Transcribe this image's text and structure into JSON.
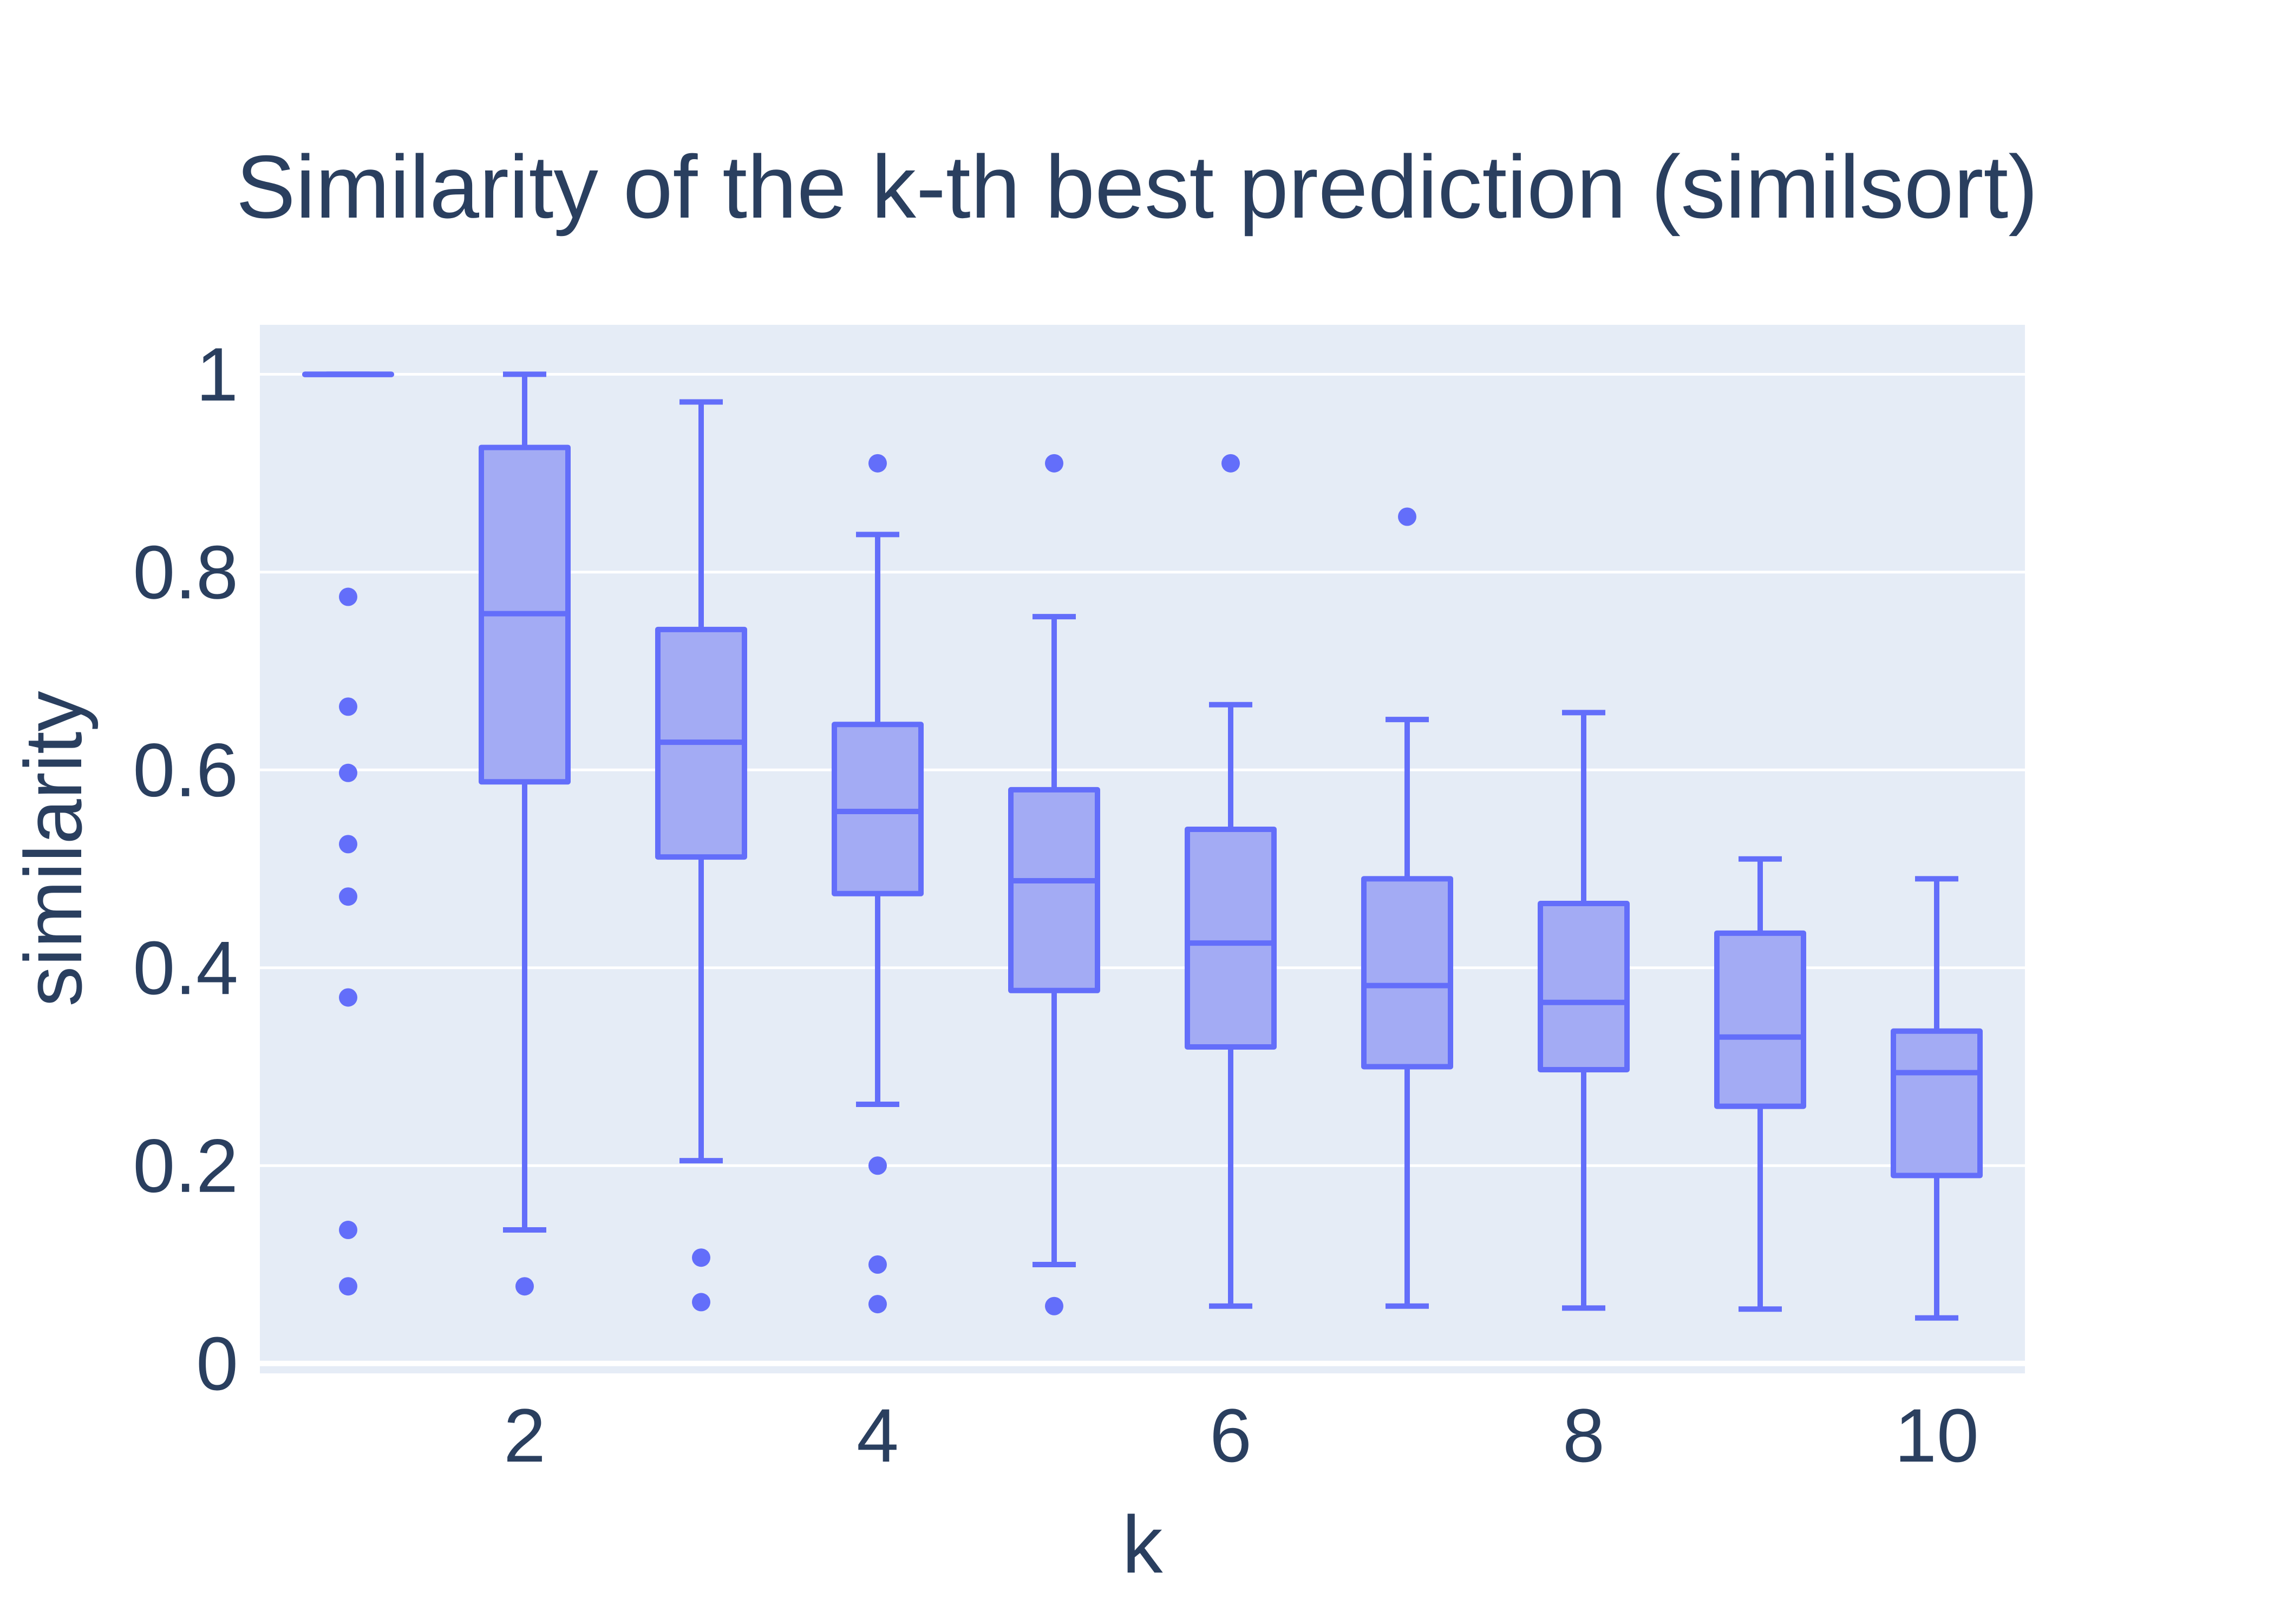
{
  "chart_data": {
    "type": "box",
    "title": "Similarity of the k-th best prediction (similsort)",
    "xlabel": "k",
    "ylabel": "similarity",
    "xlim": [
      0.5,
      10.5
    ],
    "ylim": [
      -0.01,
      1.05
    ],
    "x_ticks": [
      2,
      4,
      6,
      8,
      10
    ],
    "y_ticks": [
      0,
      0.2,
      0.4,
      0.6,
      0.8,
      1
    ],
    "y_tick_labels": [
      "0",
      "0.2",
      "0.4",
      "0.6",
      "0.8",
      "1"
    ],
    "grid": true,
    "colors": {
      "box_line": "#636efa",
      "box_fill": "#a3abf4",
      "plot_bg": "#e5ecf6",
      "grid": "#ffffff",
      "text": "#2a3f5f"
    },
    "boxes": [
      {
        "k": 1,
        "lower_whisker": 1.0,
        "q1": 1.0,
        "median": 1.0,
        "q3": 1.0,
        "upper_whisker": 1.0,
        "outliers": [
          0.775,
          0.664,
          0.597,
          0.525,
          0.472,
          0.37,
          0.135,
          0.078
        ]
      },
      {
        "k": 2,
        "lower_whisker": 0.135,
        "q1": 0.588,
        "median": 0.758,
        "q3": 0.926,
        "upper_whisker": 1.0,
        "outliers": [
          0.078
        ]
      },
      {
        "k": 3,
        "lower_whisker": 0.205,
        "q1": 0.512,
        "median": 0.628,
        "q3": 0.742,
        "upper_whisker": 0.972,
        "outliers": [
          0.107,
          0.062
        ]
      },
      {
        "k": 4,
        "lower_whisker": 0.262,
        "q1": 0.475,
        "median": 0.558,
        "q3": 0.646,
        "upper_whisker": 0.838,
        "outliers": [
          0.91,
          0.2,
          0.1,
          0.06
        ]
      },
      {
        "k": 5,
        "lower_whisker": 0.1,
        "q1": 0.377,
        "median": 0.488,
        "q3": 0.58,
        "upper_whisker": 0.755,
        "outliers": [
          0.91,
          0.058
        ]
      },
      {
        "k": 6,
        "lower_whisker": 0.058,
        "q1": 0.32,
        "median": 0.425,
        "q3": 0.54,
        "upper_whisker": 0.666,
        "outliers": [
          0.91
        ]
      },
      {
        "k": 7,
        "lower_whisker": 0.058,
        "q1": 0.3,
        "median": 0.382,
        "q3": 0.49,
        "upper_whisker": 0.651,
        "outliers": [
          0.856
        ]
      },
      {
        "k": 8,
        "lower_whisker": 0.056,
        "q1": 0.297,
        "median": 0.365,
        "q3": 0.465,
        "upper_whisker": 0.658,
        "outliers": []
      },
      {
        "k": 9,
        "lower_whisker": 0.055,
        "q1": 0.26,
        "median": 0.33,
        "q3": 0.435,
        "upper_whisker": 0.51,
        "outliers": []
      },
      {
        "k": 10,
        "lower_whisker": 0.046,
        "q1": 0.19,
        "median": 0.294,
        "q3": 0.336,
        "upper_whisker": 0.49,
        "outliers": []
      }
    ]
  }
}
